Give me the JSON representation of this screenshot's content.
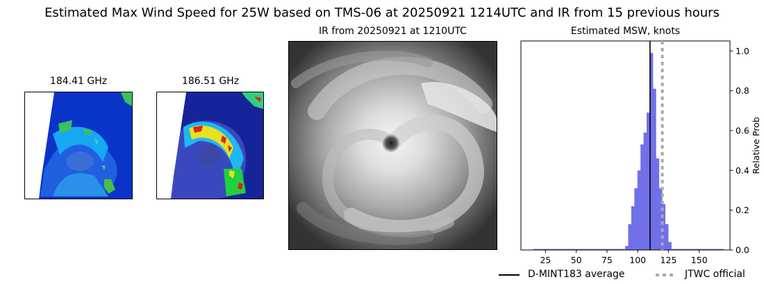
{
  "title": "Estimated Max Wind Speed for 25W based on TMS-06 at 20250921 1214UTC and IR from 15 previous hours",
  "panels": {
    "mw1_title": "184.41 GHz",
    "mw2_title": "186.51 GHz",
    "ir_title": "IR from 20250921 at 1210UTC",
    "hist_title": "Estimated MSW, knots"
  },
  "legend": {
    "average_label": "D-MINT183 average",
    "official_label": "JTWC official"
  },
  "colors": {
    "histogram": "#7070e8",
    "average_line": "#000000",
    "official_line": "#aaaaaa"
  },
  "chart_data": {
    "type": "bar",
    "title": "Estimated MSW, knots",
    "xlabel": "",
    "ylabel": "Relative Prob",
    "xlim": [
      5,
      175
    ],
    "ylim": [
      0,
      1.05
    ],
    "xticks": [
      25,
      50,
      75,
      100,
      125,
      150
    ],
    "yticks": [
      0.0,
      0.2,
      0.4,
      0.6,
      0.8,
      1.0
    ],
    "bin_width": 2.5,
    "bins": [
      {
        "x": 91,
        "value": 0.02
      },
      {
        "x": 93.5,
        "value": 0.13
      },
      {
        "x": 96,
        "value": 0.22
      },
      {
        "x": 98.5,
        "value": 0.31
      },
      {
        "x": 101,
        "value": 0.4
      },
      {
        "x": 103.5,
        "value": 0.53
      },
      {
        "x": 106,
        "value": 0.59
      },
      {
        "x": 108.5,
        "value": 0.69
      },
      {
        "x": 111,
        "value": 0.99
      },
      {
        "x": 113.5,
        "value": 0.81
      },
      {
        "x": 116,
        "value": 0.46
      },
      {
        "x": 118.5,
        "value": 0.31
      },
      {
        "x": 121,
        "value": 0.23
      },
      {
        "x": 123.5,
        "value": 0.13
      },
      {
        "x": 126,
        "value": 0.04
      }
    ],
    "baseline_range": [
      15,
      170
    ],
    "average": 110,
    "official": 120,
    "legend_position": "bottom-right"
  }
}
